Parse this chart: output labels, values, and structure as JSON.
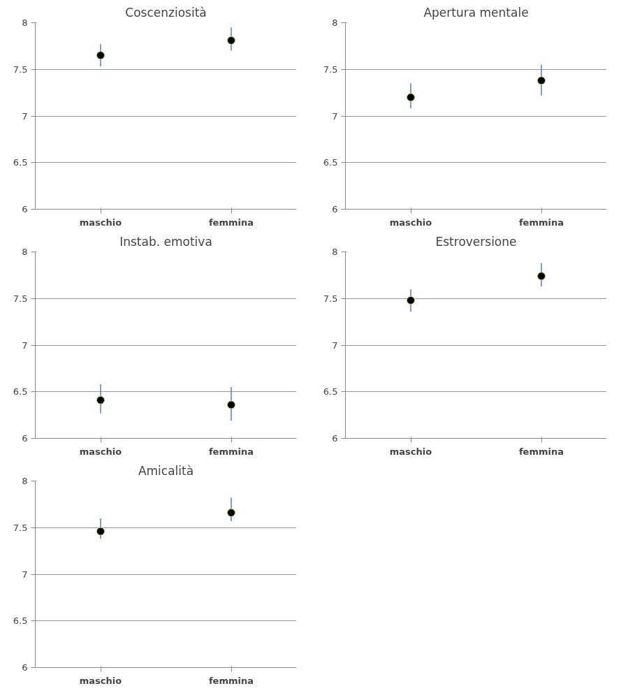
{
  "chart_data": [
    {
      "type": "scatter",
      "title": "Coscenziosità",
      "categories": [
        "maschio",
        "femmina"
      ],
      "series": [
        {
          "color": "#000000",
          "values": [
            7.65,
            7.81
          ],
          "errors": [
            [
              7.53,
              7.77
            ],
            [
              7.7,
              7.95
            ]
          ]
        }
      ],
      "ylim": [
        6,
        8
      ],
      "yticks": [
        6,
        6.5,
        7,
        7.5,
        8
      ],
      "grid": "y",
      "marker": "circle"
    },
    {
      "type": "scatter",
      "title": "Apertura mentale",
      "categories": [
        "maschio",
        "femmina"
      ],
      "series": [
        {
          "color": "#000000",
          "values": [
            7.2,
            7.38
          ],
          "errors": [
            [
              7.08,
              7.35
            ],
            [
              7.22,
              7.55
            ]
          ]
        }
      ],
      "ylim": [
        6,
        8
      ],
      "yticks": [
        6,
        6.5,
        7,
        7.5,
        8
      ],
      "grid": "y",
      "marker": "circle"
    },
    {
      "type": "scatter",
      "title": "Instab. emotiva",
      "categories": [
        "maschio",
        "femmina"
      ],
      "series": [
        {
          "color": "#000000",
          "values": [
            6.41,
            6.36
          ],
          "errors": [
            [
              6.27,
              6.58
            ],
            [
              6.19,
              6.55
            ]
          ]
        }
      ],
      "ylim": [
        6,
        8
      ],
      "yticks": [
        6,
        6.5,
        7,
        7.5,
        8
      ],
      "grid": "y",
      "marker": "circle"
    },
    {
      "type": "scatter",
      "title": "Estroversione",
      "categories": [
        "maschio",
        "femmina"
      ],
      "series": [
        {
          "color": "#000000",
          "values": [
            7.48,
            7.74
          ],
          "errors": [
            [
              7.36,
              7.6
            ],
            [
              7.63,
              7.88
            ]
          ]
        }
      ],
      "ylim": [
        6,
        8
      ],
      "yticks": [
        6,
        6.5,
        7,
        7.5,
        8
      ],
      "grid": "y",
      "marker": "circle"
    },
    {
      "type": "scatter",
      "title": "Amicalità",
      "categories": [
        "maschio",
        "femmina"
      ],
      "series": [
        {
          "color": "#000000",
          "values": [
            7.46,
            7.66
          ],
          "errors": [
            [
              7.38,
              7.6
            ],
            [
              7.57,
              7.82
            ]
          ]
        }
      ],
      "ylim": [
        6,
        8
      ],
      "yticks": [
        6,
        6.5,
        7,
        7.5,
        8
      ],
      "grid": "y",
      "marker": "circle"
    }
  ]
}
